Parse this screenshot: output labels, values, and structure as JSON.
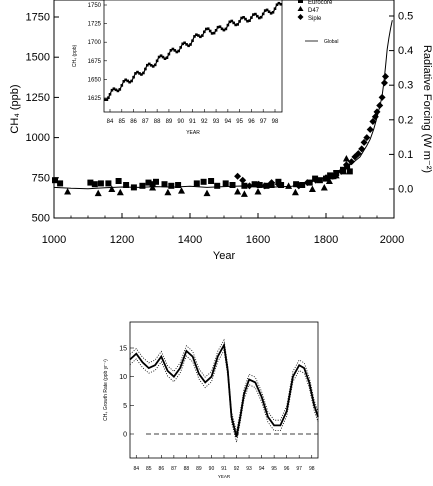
{
  "chart_data": [
    {
      "type": "scatter",
      "ylabel": "CH₄ (ppb)",
      "y2label": "Radiative Forcing (W m⁻²)",
      "xlabel": "Year",
      "xlim": [
        1000,
        2000
      ],
      "ylim": [
        500,
        1800
      ],
      "y2lim": [
        -0.08,
        0.54
      ],
      "xticks": [
        "1000",
        "1200",
        "1400",
        "1600",
        "1800",
        "2000"
      ],
      "yticks": [
        "500",
        "750",
        "1000",
        "1250",
        "1500",
        "1750"
      ],
      "y2ticks": [
        "0.0",
        "0.1",
        "0.2",
        "0.3",
        "0.4",
        "0.5"
      ],
      "legend": {
        "placement": "top-right",
        "entries": [
          "Eurocore",
          "D47",
          "Siple",
          "Global"
        ]
      },
      "series": [
        {
          "name": "Eurocore",
          "marker": "square",
          "points": [
            [
              1003,
              735
            ],
            [
              1018,
              715
            ],
            [
              1107,
              720
            ],
            [
              1120,
              710
            ],
            [
              1138,
              715
            ],
            [
              1160,
              715
            ],
            [
              1190,
              730
            ],
            [
              1212,
              705
            ],
            [
              1235,
              690
            ],
            [
              1260,
              700
            ],
            [
              1278,
              720
            ],
            [
              1290,
              710
            ],
            [
              1300,
              725
            ],
            [
              1325,
              710
            ],
            [
              1345,
              700
            ],
            [
              1365,
              705
            ],
            [
              1420,
              715
            ],
            [
              1440,
              725
            ],
            [
              1462,
              730
            ],
            [
              1480,
              700
            ],
            [
              1505,
              715
            ],
            [
              1525,
              705
            ],
            [
              1560,
              700
            ],
            [
              1590,
              710
            ],
            [
              1605,
              705
            ],
            [
              1625,
              700
            ],
            [
              1640,
              705
            ],
            [
              1660,
              725
            ],
            [
              1668,
              705
            ],
            [
              1712,
              710
            ],
            [
              1730,
              705
            ],
            [
              1752,
              720
            ],
            [
              1768,
              745
            ],
            [
              1782,
              735
            ],
            [
              1800,
              745
            ],
            [
              1812,
              765
            ],
            [
              1822,
              760
            ],
            [
              1830,
              780
            ],
            [
              1850,
              800
            ],
            [
              1862,
              820
            ],
            [
              1870,
              790
            ]
          ]
        },
        {
          "name": "D47",
          "marker": "triangle",
          "points": [
            [
              1040,
              665
            ],
            [
              1130,
              655
            ],
            [
              1170,
              680
            ],
            [
              1195,
              660
            ],
            [
              1290,
              690
            ],
            [
              1335,
              660
            ],
            [
              1375,
              670
            ],
            [
              1450,
              655
            ],
            [
              1540,
              665
            ],
            [
              1560,
              650
            ],
            [
              1600,
              665
            ],
            [
              1690,
              700
            ],
            [
              1710,
              660
            ],
            [
              1760,
              680
            ],
            [
              1795,
              690
            ],
            [
              1810,
              730
            ],
            [
              1815,
              760
            ],
            [
              1830,
              765
            ],
            [
              1852,
              790
            ],
            [
              1860,
              870
            ]
          ]
        },
        {
          "name": "Siple",
          "marker": "diamond",
          "points": [
            [
              1540,
              760
            ],
            [
              1555,
              735
            ],
            [
              1575,
              700
            ],
            [
              1602,
              710
            ],
            [
              1620,
              700
            ],
            [
              1640,
              720
            ],
            [
              1660,
              710
            ],
            [
              1720,
              700
            ],
            [
              1745,
              720
            ],
            [
              1770,
              735
            ],
            [
              1800,
              750
            ],
            [
              1820,
              760
            ],
            [
              1845,
              790
            ],
            [
              1860,
              830
            ],
            [
              1875,
              850
            ],
            [
              1885,
              880
            ],
            [
              1895,
              900
            ],
            [
              1905,
              930
            ],
            [
              1912,
              970
            ],
            [
              1920,
              1000
            ],
            [
              1930,
              1050
            ],
            [
              1938,
              1100
            ],
            [
              1945,
              1130
            ],
            [
              1950,
              1160
            ],
            [
              1958,
              1200
            ],
            [
              1965,
              1250
            ],
            [
              1972,
              1340
            ],
            [
              1975,
              1380
            ]
          ]
        },
        {
          "name": "Global",
          "style": "line",
          "x": [
            1000,
            1050,
            1100,
            1150,
            1200,
            1250,
            1300,
            1350,
            1400,
            1450,
            1500,
            1550,
            1600,
            1650,
            1700,
            1720,
            1750,
            1780,
            1800,
            1820,
            1840,
            1860,
            1880,
            1900,
            1910,
            1920,
            1930,
            1940,
            1950,
            1960,
            1965,
            1970,
            1975,
            1980,
            1985,
            1990,
            1995
          ],
          "y": [
            690,
            685,
            682,
            688,
            693,
            690,
            695,
            692,
            697,
            690,
            695,
            699,
            693,
            693,
            698,
            705,
            720,
            740,
            750,
            765,
            790,
            815,
            845,
            880,
            915,
            950,
            990,
            1050,
            1125,
            1210,
            1260,
            1340,
            1440,
            1550,
            1620,
            1680,
            1730
          ]
        }
      ]
    },
    {
      "type": "line",
      "title": "",
      "ylabel": "CH₄ (ppb)",
      "xlabel": "YEAR",
      "xlim": [
        1983.5,
        1998.8
      ],
      "ylim": [
        1610,
        1760
      ],
      "xticks": [
        "84",
        "85",
        "86",
        "87",
        "88",
        "89",
        "90",
        "91",
        "92",
        "93",
        "94",
        "95",
        "96",
        "97",
        "98"
      ],
      "yticks": [
        "1625",
        "1650",
        "1675",
        "1700",
        "1725",
        "1750"
      ],
      "series": [
        {
          "style": "line with square markers",
          "x": [
            1983.6,
            1984.0,
            1984.5,
            1985.0,
            1985.5,
            1986.0,
            1986.5,
            1987.0,
            1987.5,
            1988.0,
            1988.5,
            1989.0,
            1989.5,
            1990.0,
            1990.5,
            1991.0,
            1991.5,
            1992.0,
            1992.5,
            1993.0,
            1993.5,
            1994.0,
            1994.5,
            1995.0,
            1995.5,
            1996.0,
            1996.5,
            1997.0,
            1997.5,
            1998.0,
            1998.5
          ],
          "y": [
            1625,
            1630,
            1636,
            1642,
            1648,
            1653,
            1658,
            1664,
            1669,
            1675,
            1680,
            1684,
            1689,
            1693,
            1697,
            1702,
            1709,
            1714,
            1715,
            1716,
            1718,
            1723,
            1726,
            1728,
            1731,
            1733,
            1735,
            1738,
            1741,
            1745,
            1751
          ]
        }
      ]
    },
    {
      "type": "line",
      "ylabel": "CH₄ Growth Rate (ppb yr⁻¹)",
      "xlabel": "YEAR",
      "xlim": [
        1983.5,
        1998.5
      ],
      "ylim": [
        -5,
        20
      ],
      "xticks": [
        "84",
        "85",
        "86",
        "87",
        "88",
        "89",
        "90",
        "91",
        "92",
        "93",
        "94",
        "95",
        "96",
        "97",
        "98"
      ],
      "yticks": [
        "0",
        "5",
        "10",
        "15"
      ],
      "series": [
        {
          "style": "solid",
          "x": [
            1983.5,
            1984.0,
            1984.5,
            1985.0,
            1985.5,
            1986.0,
            1986.5,
            1987.0,
            1987.5,
            1988.0,
            1988.5,
            1989.0,
            1989.5,
            1990.0,
            1990.5,
            1991.0,
            1991.3,
            1991.6,
            1992.0,
            1992.3,
            1992.6,
            1993.0,
            1993.5,
            1994.0,
            1994.5,
            1995.0,
            1995.5,
            1996.0,
            1996.5,
            1997.0,
            1997.4,
            1997.8,
            1998.2,
            1998.5
          ],
          "y": [
            13.0,
            14.0,
            12.5,
            11.5,
            12.0,
            13.5,
            11.0,
            10.0,
            11.5,
            14.5,
            13.5,
            10.5,
            9.0,
            10.0,
            13.5,
            15.5,
            11.0,
            3.0,
            -0.5,
            3.0,
            7.0,
            9.5,
            9.0,
            6.5,
            3.0,
            1.5,
            1.5,
            4.0,
            10.0,
            12.0,
            11.5,
            9.0,
            5.0,
            3.0
          ]
        },
        {
          "style": "dotted upper",
          "x": [
            1983.5,
            1984.0,
            1984.5,
            1985.0,
            1985.5,
            1986.0,
            1986.5,
            1987.0,
            1987.5,
            1988.0,
            1988.5,
            1989.0,
            1989.5,
            1990.0,
            1990.5,
            1991.0,
            1991.3,
            1991.6,
            1992.0,
            1992.3,
            1992.6,
            1993.0,
            1993.5,
            1994.0,
            1994.5,
            1995.0,
            1995.5,
            1996.0,
            1996.5,
            1997.0,
            1997.4,
            1997.8,
            1998.2,
            1998.5
          ],
          "y": [
            13.9,
            14.9,
            13.4,
            12.4,
            12.9,
            14.4,
            11.9,
            10.9,
            12.4,
            15.4,
            14.4,
            11.4,
            9.9,
            10.9,
            14.4,
            16.4,
            11.9,
            3.9,
            0.4,
            3.9,
            7.9,
            10.4,
            9.9,
            7.4,
            3.9,
            2.4,
            2.4,
            4.9,
            10.9,
            12.9,
            12.4,
            9.9,
            5.9,
            3.9
          ]
        },
        {
          "style": "dotted lower",
          "x": [
            1983.5,
            1984.0,
            1984.5,
            1985.0,
            1985.5,
            1986.0,
            1986.5,
            1987.0,
            1987.5,
            1988.0,
            1988.5,
            1989.0,
            1989.5,
            1990.0,
            1990.5,
            1991.0,
            1991.3,
            1991.6,
            1992.0,
            1992.3,
            1992.6,
            1993.0,
            1993.5,
            1994.0,
            1994.5,
            1995.0,
            1995.5,
            1996.0,
            1996.5,
            1997.0,
            1997.4,
            1997.8,
            1998.2,
            1998.5
          ],
          "y": [
            12.1,
            13.1,
            11.6,
            10.6,
            11.1,
            12.6,
            10.1,
            9.1,
            10.6,
            13.6,
            12.6,
            9.6,
            8.1,
            9.1,
            12.6,
            14.6,
            10.1,
            2.1,
            -1.4,
            2.1,
            6.1,
            8.6,
            8.1,
            5.6,
            2.1,
            0.6,
            0.6,
            3.1,
            9.1,
            11.1,
            10.6,
            8.1,
            4.1,
            2.1
          ]
        }
      ],
      "reference_line": {
        "y": 0,
        "style": "dashed"
      }
    }
  ]
}
